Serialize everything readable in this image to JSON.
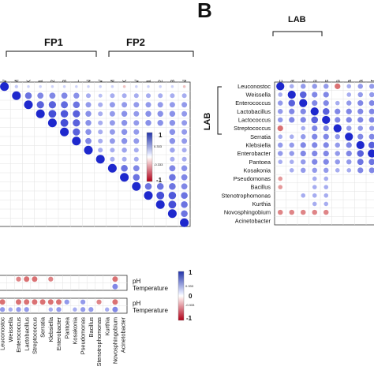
{
  "panel_b_label": "B",
  "chart_data": [
    {
      "type": "heatmap",
      "panel": "A",
      "group_labels": [
        "FP1",
        "FP2"
      ],
      "columns": [
        "A-PW",
        "A-CM",
        "A-MLK",
        "A-L1",
        "A-L2",
        "A-L3",
        "A-PFIL",
        "A-PCEN",
        "B-PW",
        "B-CM",
        "B-MLK",
        "B-MLKW",
        "B-L1",
        "B-L2",
        "B-L3",
        "B-CEN"
      ],
      "legend": {
        "max_label": "1",
        "min_label": "-1",
        "ticks": [
          "0.333",
          "-0.333"
        ]
      },
      "values": [
        [
          1.0,
          0.15,
          0.1,
          0.1,
          0.1,
          0.1,
          0.1,
          0.1,
          0.1,
          0.1,
          -0.1,
          0.1,
          0.1,
          0.1,
          0.1,
          -0.1
        ],
        [
          0.15,
          1.0,
          0.6,
          0.5,
          0.5,
          0.5,
          0.45,
          0.3,
          0.2,
          0.3,
          0.3,
          0.3,
          0.3,
          0.3,
          0.3,
          0.3
        ],
        [
          0.1,
          0.6,
          1.0,
          0.7,
          0.7,
          0.65,
          0.6,
          0.4,
          0.3,
          0.4,
          0.4,
          0.4,
          0.4,
          0.4,
          0.4,
          0.4
        ],
        [
          0.1,
          0.5,
          0.7,
          1.0,
          0.8,
          0.75,
          0.7,
          0.45,
          0.3,
          0.4,
          0.45,
          0.4,
          0.45,
          0.45,
          0.45,
          0.4
        ],
        [
          0.1,
          0.5,
          0.7,
          0.8,
          1.0,
          0.8,
          0.7,
          0.45,
          0.3,
          0.4,
          0.45,
          0.4,
          0.45,
          0.45,
          0.45,
          0.4
        ],
        [
          0.1,
          0.5,
          0.65,
          0.75,
          0.8,
          1.0,
          0.7,
          0.45,
          0.3,
          0.4,
          0.45,
          0.4,
          0.45,
          0.45,
          0.45,
          0.4
        ],
        [
          0.1,
          0.45,
          0.6,
          0.7,
          0.7,
          0.7,
          1.0,
          0.5,
          0.3,
          0.4,
          0.45,
          0.4,
          0.45,
          0.45,
          0.45,
          0.4
        ],
        [
          0.1,
          0.3,
          0.4,
          0.45,
          0.45,
          0.45,
          0.5,
          1.0,
          0.3,
          0.3,
          0.35,
          0.3,
          0.35,
          0.35,
          0.35,
          0.3
        ],
        [
          0.1,
          0.2,
          0.3,
          0.3,
          0.3,
          0.3,
          0.3,
          0.3,
          1.0,
          0.3,
          0.3,
          0.3,
          0.3,
          0.3,
          0.3,
          0.3
        ],
        [
          0.1,
          0.3,
          0.4,
          0.4,
          0.4,
          0.4,
          0.4,
          0.3,
          0.3,
          1.0,
          0.6,
          0.5,
          0.5,
          0.5,
          0.5,
          0.45
        ],
        [
          -0.1,
          0.3,
          0.4,
          0.45,
          0.45,
          0.45,
          0.45,
          0.35,
          0.3,
          0.6,
          1.0,
          0.6,
          0.6,
          0.6,
          0.6,
          0.5
        ],
        [
          0.1,
          0.3,
          0.4,
          0.4,
          0.4,
          0.4,
          0.4,
          0.3,
          0.3,
          0.5,
          0.6,
          1.0,
          0.6,
          0.6,
          0.6,
          0.5
        ],
        [
          0.1,
          0.3,
          0.4,
          0.45,
          0.45,
          0.45,
          0.45,
          0.35,
          0.3,
          0.5,
          0.6,
          0.6,
          1.0,
          0.8,
          0.75,
          0.6
        ],
        [
          0.1,
          0.3,
          0.4,
          0.45,
          0.45,
          0.45,
          0.45,
          0.35,
          0.3,
          0.5,
          0.6,
          0.6,
          0.8,
          1.0,
          0.8,
          0.6
        ],
        [
          0.1,
          0.3,
          0.4,
          0.45,
          0.45,
          0.45,
          0.45,
          0.35,
          0.3,
          0.5,
          0.6,
          0.6,
          0.75,
          0.8,
          1.0,
          0.6
        ],
        [
          -0.1,
          0.3,
          0.4,
          0.4,
          0.4,
          0.4,
          0.4,
          0.3,
          0.3,
          0.45,
          0.5,
          0.5,
          0.6,
          0.6,
          0.6,
          1.0
        ]
      ]
    },
    {
      "type": "heatmap",
      "panel": "B",
      "group_label": "LAB",
      "row_group_label": "LAB",
      "taxa": [
        "Leuconostoc",
        "Weissella",
        "Enterococcus",
        "Lactobacillus",
        "Lactococcus",
        "Streptococcus",
        "Serratia",
        "Klebsiella",
        "Enterobacter",
        "Pantoea",
        "Kosakonia",
        "Pseudomonas",
        "Bacillus",
        "Stenotrophomonas",
        "Kurthia",
        "Novosphingobium",
        "Acinetobacter"
      ],
      "legend": {
        "max_label": "1",
        "min_label": "-1",
        "mid_label": "0"
      },
      "values": [
        [
          1.0,
          0.3,
          0.4,
          0.4,
          0.4,
          -0.5,
          0.3,
          0.4,
          0.4,
          0.3,
          0.0,
          -0.3,
          -0.3,
          0.0,
          0.0,
          -0.4,
          0.0
        ],
        [
          0.3,
          1.0,
          0.7,
          0.5,
          0.5,
          0.0,
          0.3,
          0.4,
          0.4,
          0.3,
          0.3,
          0.0,
          0.0,
          0.0,
          0.0,
          -0.4,
          0.0
        ],
        [
          0.4,
          0.7,
          1.0,
          0.5,
          0.5,
          0.3,
          0.4,
          0.5,
          0.5,
          0.4,
          0.4,
          0.0,
          0.0,
          0.3,
          0.0,
          -0.4,
          0.0
        ],
        [
          0.4,
          0.5,
          0.5,
          1.0,
          0.7,
          0.5,
          0.5,
          0.5,
          0.5,
          0.5,
          0.4,
          0.3,
          0.3,
          0.3,
          0.3,
          -0.4,
          0.0
        ],
        [
          0.4,
          0.5,
          0.5,
          0.7,
          1.0,
          0.5,
          0.5,
          0.5,
          0.5,
          0.5,
          0.4,
          0.3,
          0.3,
          0.3,
          0.3,
          -0.4,
          0.0
        ],
        [
          -0.5,
          0.0,
          0.3,
          0.5,
          0.5,
          1.0,
          0.4,
          0.4,
          0.4,
          0.4,
          0.3,
          0.0,
          0.0,
          0.0,
          0.0,
          0.0,
          0.0
        ],
        [
          0.3,
          0.3,
          0.4,
          0.5,
          0.5,
          0.4,
          1.0,
          0.5,
          0.5,
          0.4,
          0.3,
          0.0,
          0.0,
          0.0,
          0.0,
          0.0,
          0.0
        ],
        [
          0.4,
          0.4,
          0.5,
          0.5,
          0.5,
          0.4,
          0.5,
          1.0,
          0.7,
          0.6,
          0.5,
          0.0,
          0.0,
          0.0,
          0.0,
          0.0,
          0.0
        ],
        [
          0.4,
          0.4,
          0.5,
          0.5,
          0.5,
          0.4,
          0.5,
          0.7,
          1.0,
          0.6,
          0.5,
          0.0,
          0.0,
          0.0,
          0.0,
          0.0,
          0.0
        ],
        [
          0.3,
          0.3,
          0.4,
          0.5,
          0.5,
          0.4,
          0.4,
          0.6,
          0.6,
          1.0,
          0.5,
          0.0,
          0.0,
          0.0,
          0.0,
          0.0,
          0.0
        ],
        [
          0.0,
          0.3,
          0.4,
          0.4,
          0.4,
          0.3,
          0.3,
          0.5,
          0.5,
          0.5,
          1.0,
          0.0,
          0.0,
          0.0,
          0.0,
          0.0,
          0.0
        ],
        [
          -0.3,
          0.0,
          0.0,
          0.3,
          0.3,
          0.0,
          0.0,
          0.0,
          0.0,
          0.0,
          0.0,
          1.0,
          0.4,
          0.0,
          0.0,
          0.0,
          0.0
        ],
        [
          -0.3,
          0.0,
          0.0,
          0.3,
          0.3,
          0.0,
          0.0,
          0.0,
          0.0,
          0.0,
          0.0,
          0.4,
          1.0,
          0.0,
          0.0,
          0.0,
          0.0
        ],
        [
          0.0,
          0.0,
          0.3,
          0.3,
          0.3,
          0.0,
          0.0,
          0.0,
          0.0,
          0.0,
          0.0,
          0.0,
          0.0,
          1.0,
          0.0,
          0.0,
          0.0
        ],
        [
          0.0,
          0.0,
          0.0,
          0.3,
          0.3,
          0.0,
          0.0,
          0.0,
          0.0,
          0.0,
          0.0,
          0.0,
          0.0,
          0.0,
          1.0,
          0.0,
          0.0
        ],
        [
          -0.4,
          -0.4,
          -0.4,
          -0.4,
          -0.4,
          0.0,
          0.0,
          0.0,
          0.0,
          0.0,
          0.0,
          0.0,
          0.0,
          0.0,
          0.0,
          1.0,
          0.0
        ],
        [
          0.0,
          0.0,
          0.0,
          0.0,
          0.0,
          0.0,
          0.0,
          0.0,
          0.0,
          0.0,
          0.0,
          0.0,
          0.0,
          0.0,
          0.0,
          0.0,
          1.0
        ]
      ]
    },
    {
      "type": "heatmap",
      "panel": "C",
      "row_labels": [
        "pH",
        "Temperature"
      ],
      "taxa": [
        "Leuconostoc",
        "Weissella",
        "Enterococcus",
        "Lactobacillus",
        "Streptococcus",
        "Serratia",
        "Klebsiella",
        "Enterobacter",
        "Pantoea",
        "Kosakonia",
        "Pseudomonas",
        "Bacillus",
        "Stenotrophomonas",
        "Kurthia",
        "Novosphingobium",
        "Acinetobacter"
      ],
      "legend": {
        "max_label": "1",
        "min_label": "-1",
        "ticks": [
          "0.333",
          "0",
          "-0.333"
        ]
      },
      "values_top": [
        [
          0,
          0,
          -0.4,
          -0.5,
          -0.5,
          0,
          -0.4,
          0,
          0,
          0,
          0,
          0,
          0,
          0,
          -0.5,
          0
        ],
        [
          0,
          0,
          0,
          0,
          0,
          0,
          0,
          0,
          0,
          0,
          0,
          0,
          0,
          0,
          0.5,
          0
        ]
      ],
      "values_bottom": [
        [
          -0.5,
          0,
          -0.5,
          -0.5,
          -0.5,
          -0.5,
          -0.5,
          -0.5,
          0.4,
          0,
          0.4,
          0,
          -0.4,
          0,
          -0.5,
          0
        ],
        [
          0.4,
          0.3,
          0.4,
          0.4,
          0,
          0,
          0.3,
          0.4,
          0,
          0.3,
          0.4,
          0.4,
          0,
          0.3,
          0.5,
          0
        ]
      ]
    }
  ]
}
